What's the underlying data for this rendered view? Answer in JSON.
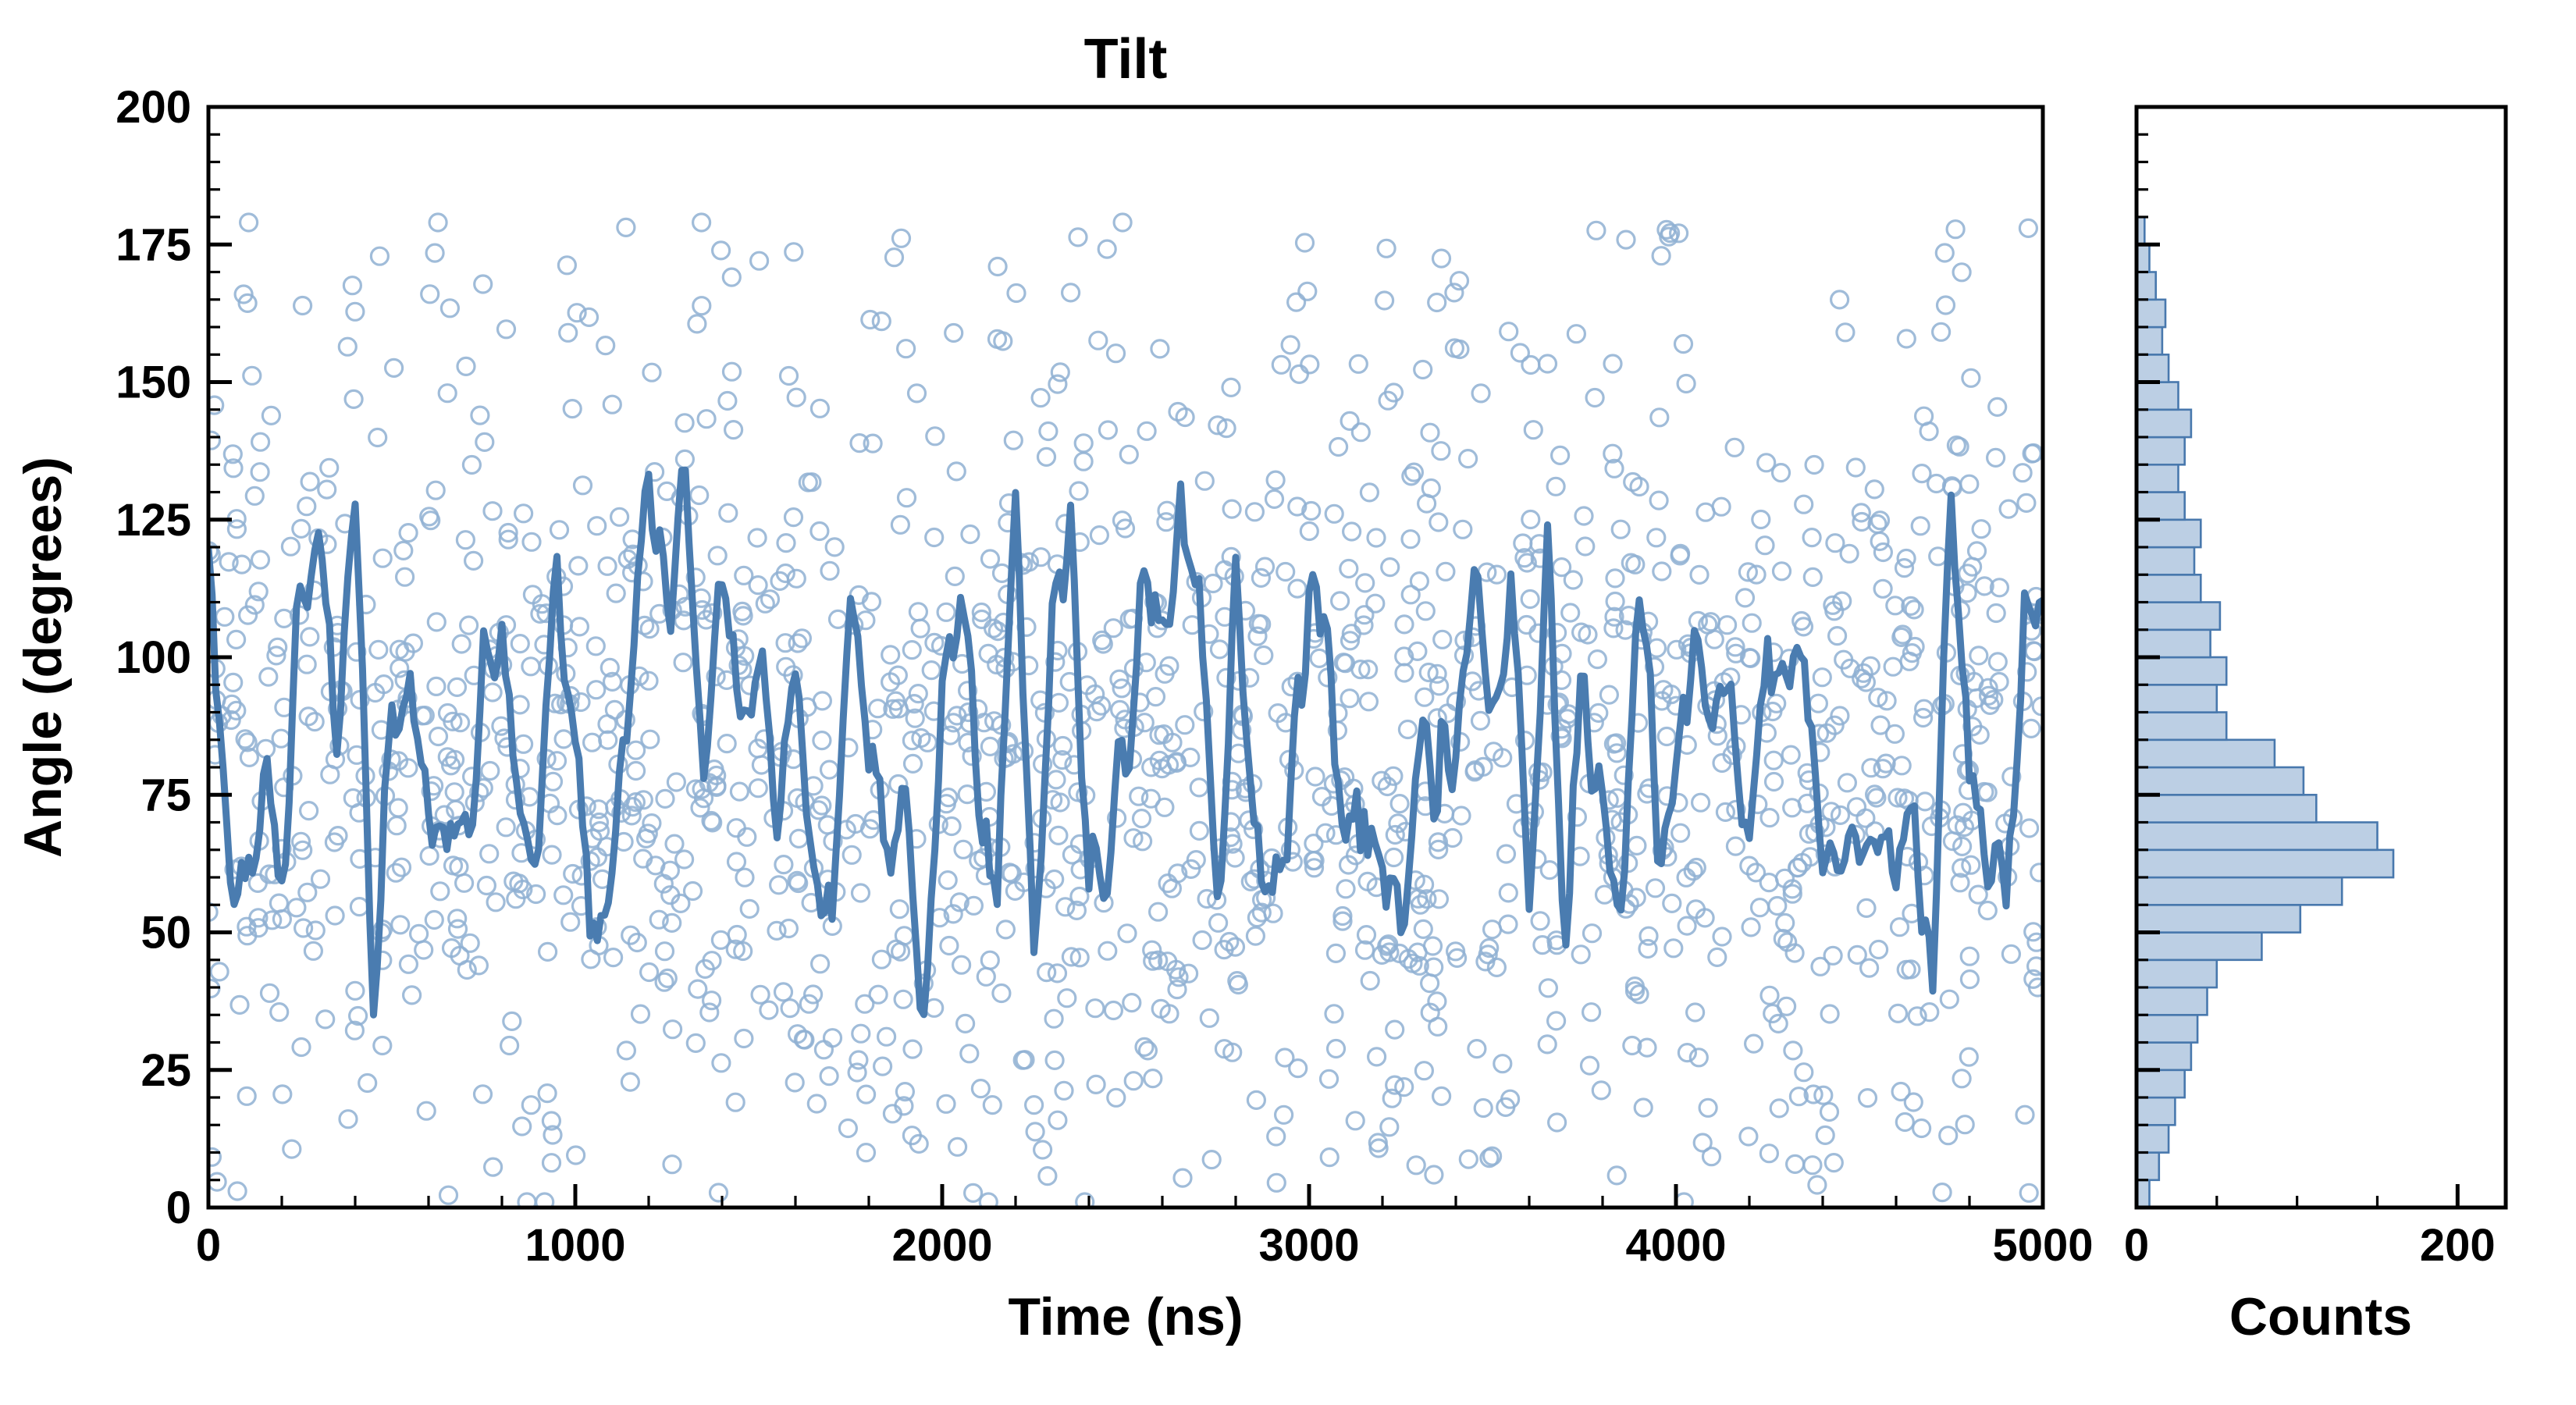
{
  "figure": {
    "title": "Tilt",
    "background": "#ffffff"
  },
  "chart_data": [
    {
      "id": "tilt-timeseries",
      "type": "scatter",
      "title": "Tilt",
      "xlabel": "Time (ns)",
      "ylabel": "Angle (degrees)",
      "xlim": [
        0,
        5000
      ],
      "ylim": [
        0,
        200
      ],
      "xticks": [
        0,
        1000,
        2000,
        3000,
        4000,
        5000
      ],
      "yticks": [
        0,
        25,
        50,
        75,
        100,
        125,
        150,
        175,
        200
      ],
      "x_minor_step": 200,
      "y_minor_step": 5,
      "grid": false,
      "legend_position": "none",
      "marker_color": "#8fb0d2",
      "marker_style": "open-circle",
      "line_color": "#4a7cb0",
      "scatter_sample": {
        "seed": 20240,
        "n": 1600,
        "x_uniform": [
          0,
          5000
        ],
        "core_fraction": 0.72,
        "core_mean": 80,
        "core_sd": 31,
        "tail_uniform": [
          0,
          180
        ],
        "clip": [
          1,
          179
        ]
      },
      "line_anchor_step_ns": 50,
      "line_anchors": [
        112,
        68,
        52,
        75,
        62,
        100,
        126,
        88,
        130,
        40,
        95,
        100,
        80,
        62,
        58,
        95,
        99,
        70,
        62,
        117,
        80,
        44,
        60,
        95,
        130,
        112,
        122,
        80,
        120,
        90,
        95,
        72,
        100,
        60,
        48,
        111,
        85,
        65,
        70,
        37,
        90,
        113,
        75,
        60,
        129,
        38,
        113,
        128,
        50,
        65,
        75,
        125,
        100,
        121,
        105,
        52,
        115,
        70,
        55,
        85,
        110,
        103,
        68,
        72,
        65,
        50,
        85,
        75,
        90,
        115,
        90,
        115,
        58,
        120,
        50,
        100,
        75,
        50,
        110,
        75,
        70,
        110,
        85,
        100,
        65,
        100,
        85,
        105,
        65,
        62,
        65,
        68,
        60,
        70,
        38,
        133,
        75,
        70,
        55,
        108,
        108
      ],
      "line_noise": {
        "seed": 7771,
        "sd": 9,
        "smooth": 3,
        "step_ns": 10,
        "clip": [
          35,
          134
        ]
      }
    },
    {
      "id": "tilt-histogram",
      "type": "bar",
      "orientation": "horizontal",
      "xlabel": "Counts",
      "xlim": [
        0,
        230
      ],
      "xticks": [
        0,
        200
      ],
      "x_minor_step": 50,
      "ylim": [
        0,
        200
      ],
      "yticks": [
        0,
        25,
        50,
        75,
        100,
        125,
        150,
        175,
        200
      ],
      "y_minor_step": 5,
      "bin_start": 0,
      "bin_width": 5,
      "bin_centers": [
        2.5,
        7.5,
        12.5,
        17.5,
        22.5,
        27.5,
        32.5,
        37.5,
        42.5,
        47.5,
        52.5,
        57.5,
        62.5,
        67.5,
        72.5,
        77.5,
        82.5,
        87.5,
        92.5,
        97.5,
        102.5,
        107.5,
        112.5,
        117.5,
        122.5,
        127.5,
        132.5,
        137.5,
        142.5,
        147.5,
        152.5,
        157.5,
        162.5,
        167.5,
        172.5,
        177.5
      ],
      "counts": [
        8,
        14,
        20,
        24,
        30,
        34,
        38,
        44,
        50,
        78,
        102,
        128,
        160,
        150,
        112,
        104,
        86,
        56,
        50,
        56,
        46,
        52,
        40,
        36,
        40,
        30,
        26,
        30,
        34,
        26,
        20,
        16,
        18,
        12,
        8,
        5
      ],
      "bar_fill": "#bccfe4",
      "bar_edge": "#4878ad"
    }
  ]
}
